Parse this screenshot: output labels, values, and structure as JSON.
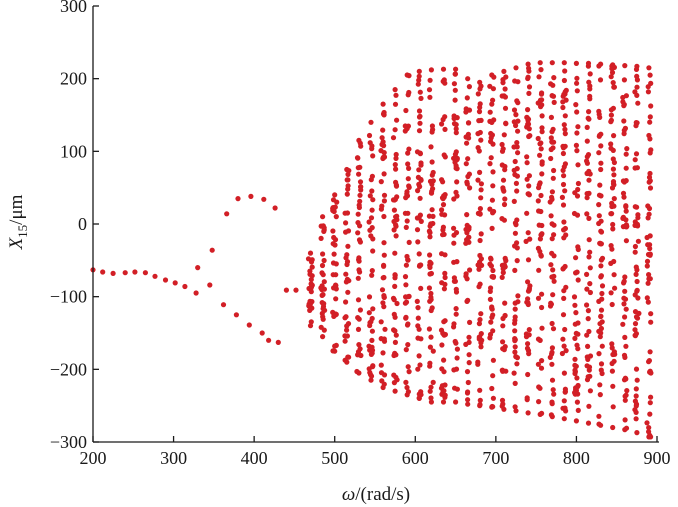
{
  "chart_data": {
    "type": "scatter",
    "title": "",
    "xlabel": {
      "italic": "ω",
      "rest": "/(rad/s)"
    },
    "ylabel": {
      "italic": "X",
      "subscript": "15",
      "rest": "/μm"
    },
    "xlim": [
      200,
      900
    ],
    "ylim": [
      -300,
      300
    ],
    "xticks": [
      "200",
      "300",
      "400",
      "500",
      "600",
      "700",
      "800",
      "900"
    ],
    "yticks": [
      "300",
      "200",
      "100",
      "0",
      "−100",
      "−200",
      "−300"
    ],
    "grid": false,
    "marker_color": "#d21f26",
    "periodic_points": [
      [
        200,
        -63
      ],
      [
        212,
        -66
      ],
      [
        225,
        -68
      ],
      [
        240,
        -67
      ],
      [
        252,
        -66
      ],
      [
        265,
        -67
      ],
      [
        277,
        -72
      ],
      [
        290,
        -77
      ],
      [
        302,
        -81
      ],
      [
        314,
        -86
      ],
      [
        328,
        -95
      ],
      [
        330,
        -60
      ],
      [
        345,
        -84
      ],
      [
        348,
        -36
      ],
      [
        362,
        -111
      ],
      [
        366,
        14
      ],
      [
        378,
        -125
      ],
      [
        380,
        35
      ],
      [
        394,
        -139
      ],
      [
        396,
        38
      ],
      [
        410,
        -150
      ],
      [
        412,
        34
      ],
      [
        418,
        -160
      ],
      [
        426,
        22
      ],
      [
        430,
        -163
      ],
      [
        440,
        -91
      ],
      [
        452,
        -91
      ]
    ],
    "chaotic_columns": [
      {
        "x": 470,
        "ymin": -140,
        "ymax": -40
      },
      {
        "x": 485,
        "ymin": -155,
        "ymax": 10
      },
      {
        "x": 500,
        "ymin": -175,
        "ymax": 40
      },
      {
        "x": 515,
        "ymin": -190,
        "ymax": 75
      },
      {
        "x": 530,
        "ymin": -205,
        "ymax": 115
      },
      {
        "x": 545,
        "ymin": -215,
        "ymax": 140
      },
      {
        "x": 560,
        "ymin": -225,
        "ymax": 165
      },
      {
        "x": 575,
        "ymin": -230,
        "ymax": 185
      },
      {
        "x": 590,
        "ymin": -235,
        "ymax": 205
      },
      {
        "x": 605,
        "ymin": -240,
        "ymax": 210
      },
      {
        "x": 620,
        "ymin": -245,
        "ymax": 212
      },
      {
        "x": 635,
        "ymin": -245,
        "ymax": 213
      },
      {
        "x": 650,
        "ymin": -245,
        "ymax": 213
      },
      {
        "x": 665,
        "ymin": -248,
        "ymax": 200
      },
      {
        "x": 680,
        "ymin": -250,
        "ymax": 195
      },
      {
        "x": 695,
        "ymin": -252,
        "ymax": 205
      },
      {
        "x": 710,
        "ymin": -255,
        "ymax": 210
      },
      {
        "x": 725,
        "ymin": -257,
        "ymax": 215
      },
      {
        "x": 740,
        "ymin": -260,
        "ymax": 220
      },
      {
        "x": 755,
        "ymin": -262,
        "ymax": 222
      },
      {
        "x": 770,
        "ymin": -265,
        "ymax": 222
      },
      {
        "x": 785,
        "ymin": -268,
        "ymax": 222
      },
      {
        "x": 800,
        "ymin": -271,
        "ymax": 221
      },
      {
        "x": 815,
        "ymin": -274,
        "ymax": 221
      },
      {
        "x": 830,
        "ymin": -277,
        "ymax": 220
      },
      {
        "x": 845,
        "ymin": -280,
        "ymax": 219
      },
      {
        "x": 860,
        "ymin": -283,
        "ymax": 218
      },
      {
        "x": 875,
        "ymin": -287,
        "ymax": 217
      },
      {
        "x": 890,
        "ymin": -293,
        "ymax": 215
      }
    ]
  }
}
